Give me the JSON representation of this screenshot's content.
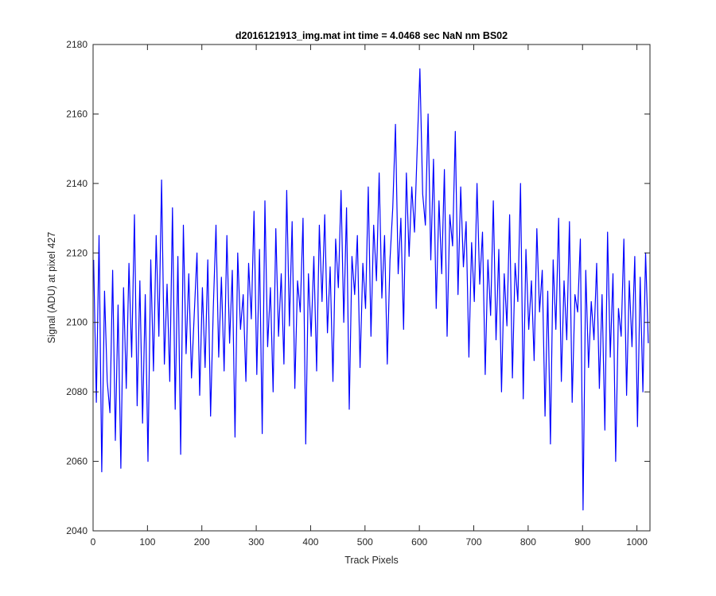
{
  "chart_data": {
    "type": "line",
    "title": "d2016121913_img.mat int time = 4.0468 sec  NaN nm BS02",
    "xlabel": "Track Pixels",
    "ylabel": "Signal (ADU) at pixel 427",
    "xlim": [
      0,
      1024
    ],
    "ylim": [
      2040,
      2180
    ],
    "xticks": [
      0,
      100,
      200,
      300,
      400,
      500,
      600,
      700,
      800,
      900,
      1000
    ],
    "yticks": [
      2040,
      2060,
      2080,
      2100,
      2120,
      2140,
      2160,
      2180
    ],
    "grid": false,
    "series_color": "#0000ff",
    "series": [
      {
        "x": [
          1,
          6,
          11,
          16,
          21,
          26,
          31,
          36,
          41,
          46,
          51,
          56,
          61,
          66,
          71,
          76,
          81,
          86,
          91,
          96,
          101,
          106,
          111,
          116,
          121,
          126,
          131,
          136,
          141,
          146,
          151,
          156,
          161,
          166,
          171,
          176,
          181,
          186,
          191,
          196,
          201,
          206,
          211,
          216,
          221,
          226,
          231,
          236,
          241,
          246,
          251,
          256,
          261,
          266,
          271,
          276,
          281,
          286,
          291,
          296,
          301,
          306,
          311,
          316,
          321,
          326,
          331,
          336,
          341,
          346,
          351,
          356,
          361,
          366,
          371,
          376,
          381,
          386,
          391,
          396,
          401,
          406,
          411,
          416,
          421,
          426,
          431,
          436,
          441,
          446,
          451,
          456,
          461,
          466,
          471,
          476,
          481,
          486,
          491,
          496,
          501,
          506,
          511,
          516,
          521,
          526,
          531,
          536,
          541,
          546,
          551,
          556,
          561,
          566,
          571,
          576,
          581,
          586,
          591,
          596,
          601,
          606,
          611,
          616,
          621,
          626,
          631,
          636,
          641,
          646,
          651,
          656,
          661,
          666,
          671,
          676,
          681,
          686,
          691,
          696,
          701,
          706,
          711,
          716,
          721,
          726,
          731,
          736,
          741,
          746,
          751,
          756,
          761,
          766,
          771,
          776,
          781,
          786,
          791,
          796,
          801,
          806,
          811,
          816,
          821,
          826,
          831,
          836,
          841,
          846,
          851,
          856,
          861,
          866,
          871,
          876,
          881,
          886,
          891,
          896,
          901,
          906,
          911,
          916,
          921,
          926,
          931,
          936,
          941,
          946,
          951,
          956,
          961,
          966,
          971,
          976,
          981,
          986,
          991,
          996,
          1001,
          1006,
          1011,
          1016,
          1021
        ],
        "values": [
          2118,
          2077,
          2125,
          2057,
          2109,
          2083,
          2074,
          2115,
          2066,
          2105,
          2058,
          2110,
          2081,
          2117,
          2090,
          2131,
          2076,
          2112,
          2071,
          2108,
          2060,
          2118,
          2086,
          2125,
          2096,
          2141,
          2088,
          2111,
          2083,
          2133,
          2075,
          2119,
          2062,
          2128,
          2091,
          2114,
          2084,
          2102,
          2120,
          2079,
          2110,
          2087,
          2118,
          2073,
          2104,
          2128,
          2090,
          2113,
          2086,
          2125,
          2094,
          2115,
          2067,
          2120,
          2098,
          2108,
          2083,
          2117,
          2101,
          2132,
          2085,
          2121,
          2068,
          2135,
          2093,
          2110,
          2080,
          2127,
          2096,
          2114,
          2088,
          2138,
          2099,
          2129,
          2081,
          2112,
          2103,
          2130,
          2065,
          2114,
          2096,
          2119,
          2086,
          2128,
          2106,
          2131,
          2097,
          2116,
          2083,
          2124,
          2110,
          2138,
          2100,
          2133,
          2075,
          2119,
          2108,
          2125,
          2087,
          2117,
          2104,
          2139,
          2096,
          2128,
          2112,
          2143,
          2107,
          2125,
          2088,
          2118,
          2133,
          2157,
          2114,
          2130,
          2098,
          2143,
          2119,
          2139,
          2126,
          2150,
          2173,
          2137,
          2128,
          2160,
          2118,
          2147,
          2104,
          2135,
          2114,
          2144,
          2096,
          2131,
          2122,
          2155,
          2108,
          2139,
          2116,
          2129,
          2090,
          2123,
          2106,
          2140,
          2111,
          2126,
          2085,
          2118,
          2102,
          2135,
          2095,
          2121,
          2080,
          2114,
          2099,
          2131,
          2084,
          2117,
          2106,
          2140,
          2078,
          2121,
          2098,
          2112,
          2089,
          2127,
          2103,
          2115,
          2073,
          2109,
          2065,
          2118,
          2098,
          2130,
          2083,
          2112,
          2095,
          2129,
          2077,
          2108,
          2103,
          2124,
          2046,
          2115,
          2087,
          2106,
          2095,
          2117,
          2081,
          2108,
          2069,
          2126,
          2090,
          2114,
          2060,
          2104,
          2096,
          2124,
          2079,
          2112,
          2093,
          2119,
          2070,
          2113,
          2080,
          2120,
          2094
        ]
      }
    ]
  }
}
